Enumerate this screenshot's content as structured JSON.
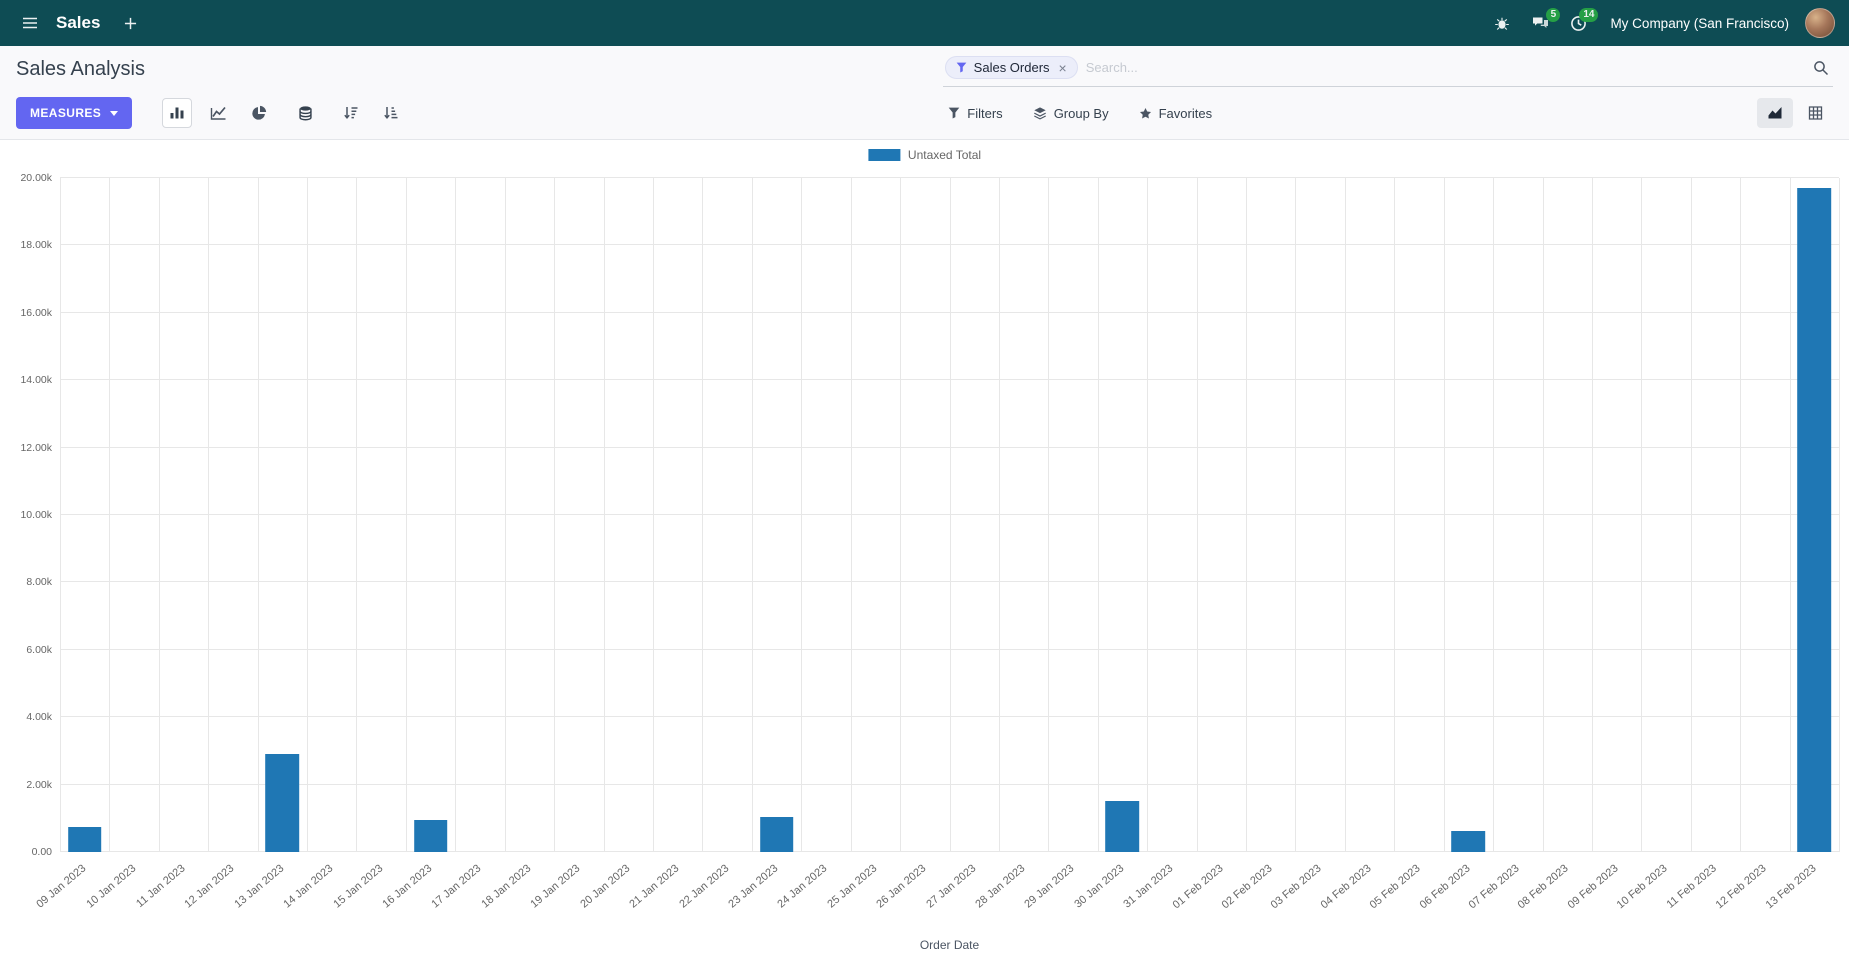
{
  "colors": {
    "navbar_bg": "#0e4c54",
    "primary": "#6366f1",
    "badge_bg": "#28a745",
    "bar_color": "#1f77b4"
  },
  "navbar": {
    "app_name": "Sales",
    "messages_badge": "5",
    "activities_badge": "14",
    "company": "My Company (San Francisco)"
  },
  "control_panel": {
    "title": "Sales Analysis",
    "measures_label": "MEASURES",
    "search": {
      "facet": "Sales Orders",
      "facet_remove": "×",
      "placeholder": "Search..."
    },
    "filters_label": "Filters",
    "group_by_label": "Group By",
    "favorites_label": "Favorites"
  },
  "chart_data": {
    "type": "bar",
    "title": "",
    "xlabel": "Order Date",
    "ylabel": "",
    "grid": true,
    "legend_position": "top",
    "ylim": [
      0,
      20000
    ],
    "ytick_values": [
      0,
      2000,
      4000,
      6000,
      8000,
      10000,
      12000,
      14000,
      16000,
      18000,
      20000
    ],
    "ytick_labels": [
      "0.00",
      "2.00k",
      "4.00k",
      "6.00k",
      "8.00k",
      "10.00k",
      "12.00k",
      "14.00k",
      "16.00k",
      "18.00k",
      "20.00k"
    ],
    "categories": [
      "09 Jan 2023",
      "10 Jan 2023",
      "11 Jan 2023",
      "12 Jan 2023",
      "13 Jan 2023",
      "14 Jan 2023",
      "15 Jan 2023",
      "16 Jan 2023",
      "17 Jan 2023",
      "18 Jan 2023",
      "19 Jan 2023",
      "20 Jan 2023",
      "21 Jan 2023",
      "22 Jan 2023",
      "23 Jan 2023",
      "24 Jan 2023",
      "25 Jan 2023",
      "26 Jan 2023",
      "27 Jan 2023",
      "28 Jan 2023",
      "29 Jan 2023",
      "30 Jan 2023",
      "31 Jan 2023",
      "01 Feb 2023",
      "02 Feb 2023",
      "03 Feb 2023",
      "04 Feb 2023",
      "05 Feb 2023",
      "06 Feb 2023",
      "07 Feb 2023",
      "08 Feb 2023",
      "09 Feb 2023",
      "10 Feb 2023",
      "11 Feb 2023",
      "12 Feb 2023",
      "13 Feb 2023"
    ],
    "series": [
      {
        "name": "Untaxed Total",
        "color": "#1f77b4",
        "values": [
          750,
          0,
          0,
          0,
          2900,
          0,
          0,
          950,
          0,
          0,
          0,
          0,
          0,
          0,
          1050,
          0,
          0,
          0,
          0,
          0,
          0,
          1500,
          0,
          0,
          0,
          0,
          0,
          0,
          620,
          0,
          0,
          0,
          0,
          0,
          0,
          19700
        ]
      }
    ]
  }
}
